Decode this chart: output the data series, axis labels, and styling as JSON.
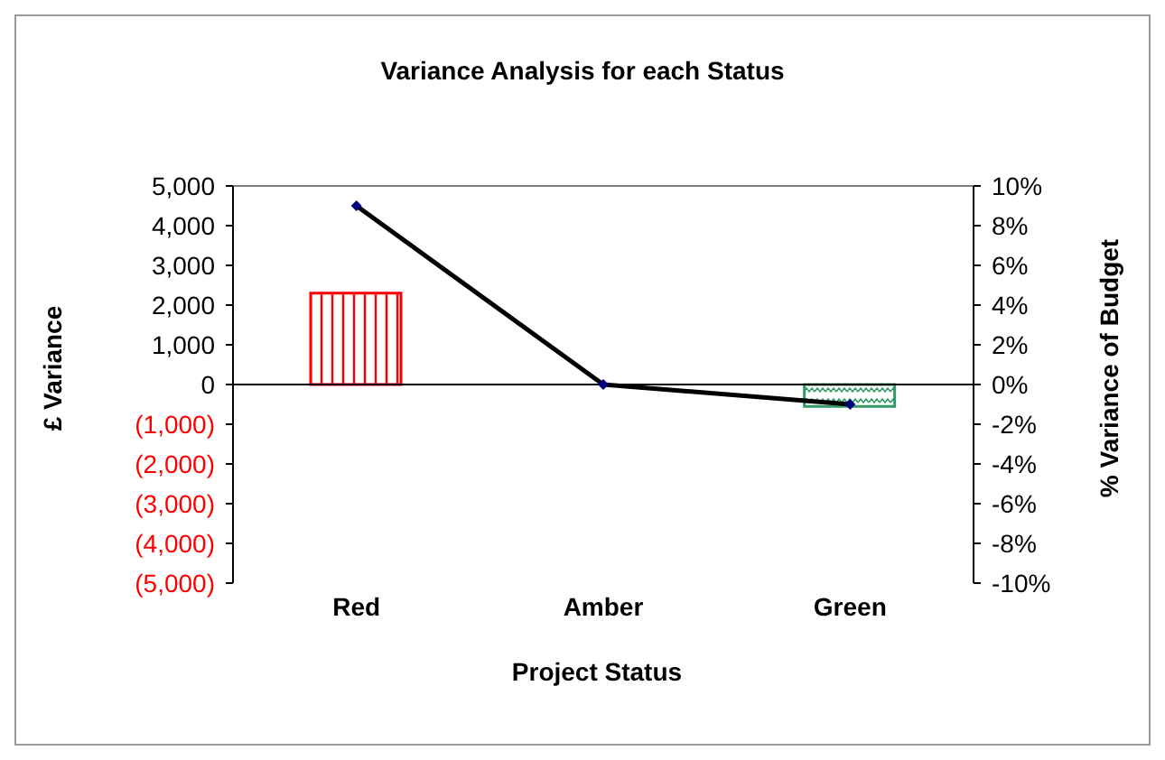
{
  "chart_data": {
    "type": "bar",
    "title": "Variance Analysis for each Status",
    "xlabel": "Project Status",
    "ylabel": "£ Variance",
    "y2label": "% Variance of Budget",
    "categories": [
      "Red",
      "Amber",
      "Green"
    ],
    "series": [
      {
        "colors": [
          "#ff0000",
          "#ffffff",
          "#339966"
        ],
        "values": [
          2300,
          0,
          -550
        ]
      },
      {
        "type": "line",
        "axis": "y2",
        "color": "#000000",
        "values": [
          9,
          0,
          -1
        ],
        "marker": "diamond"
      }
    ],
    "ylim": [
      -5000,
      5000
    ],
    "yticks": [
      {
        "value": -5000,
        "label": "(5,000)"
      },
      {
        "value": -4000,
        "label": "(4,000)"
      },
      {
        "value": -3000,
        "label": "(3,000)"
      },
      {
        "value": -2000,
        "label": "(2,000)"
      },
      {
        "value": -1000,
        "label": "(1,000)"
      },
      {
        "value": 0,
        "label": "0"
      },
      {
        "value": 1000,
        "label": "1,000"
      },
      {
        "value": 2000,
        "label": "2,000"
      },
      {
        "value": 3000,
        "label": "3,000"
      },
      {
        "value": 4000,
        "label": "4,000"
      },
      {
        "value": 5000,
        "label": "5,000"
      }
    ],
    "y2lim": [
      -10,
      10
    ],
    "y2ticks": [
      {
        "value": -10,
        "label": "-10%"
      },
      {
        "value": -8,
        "label": "-8%"
      },
      {
        "value": -6,
        "label": "-6%"
      },
      {
        "value": -4,
        "label": "-4%"
      },
      {
        "value": -2,
        "label": "-2%"
      },
      {
        "value": 0,
        "label": "0%"
      },
      {
        "value": 2,
        "label": "2%"
      },
      {
        "value": 4,
        "label": "4%"
      },
      {
        "value": 6,
        "label": "6%"
      },
      {
        "value": 8,
        "label": "8%"
      },
      {
        "value": 10,
        "label": "10%"
      }
    ],
    "legend": false
  }
}
